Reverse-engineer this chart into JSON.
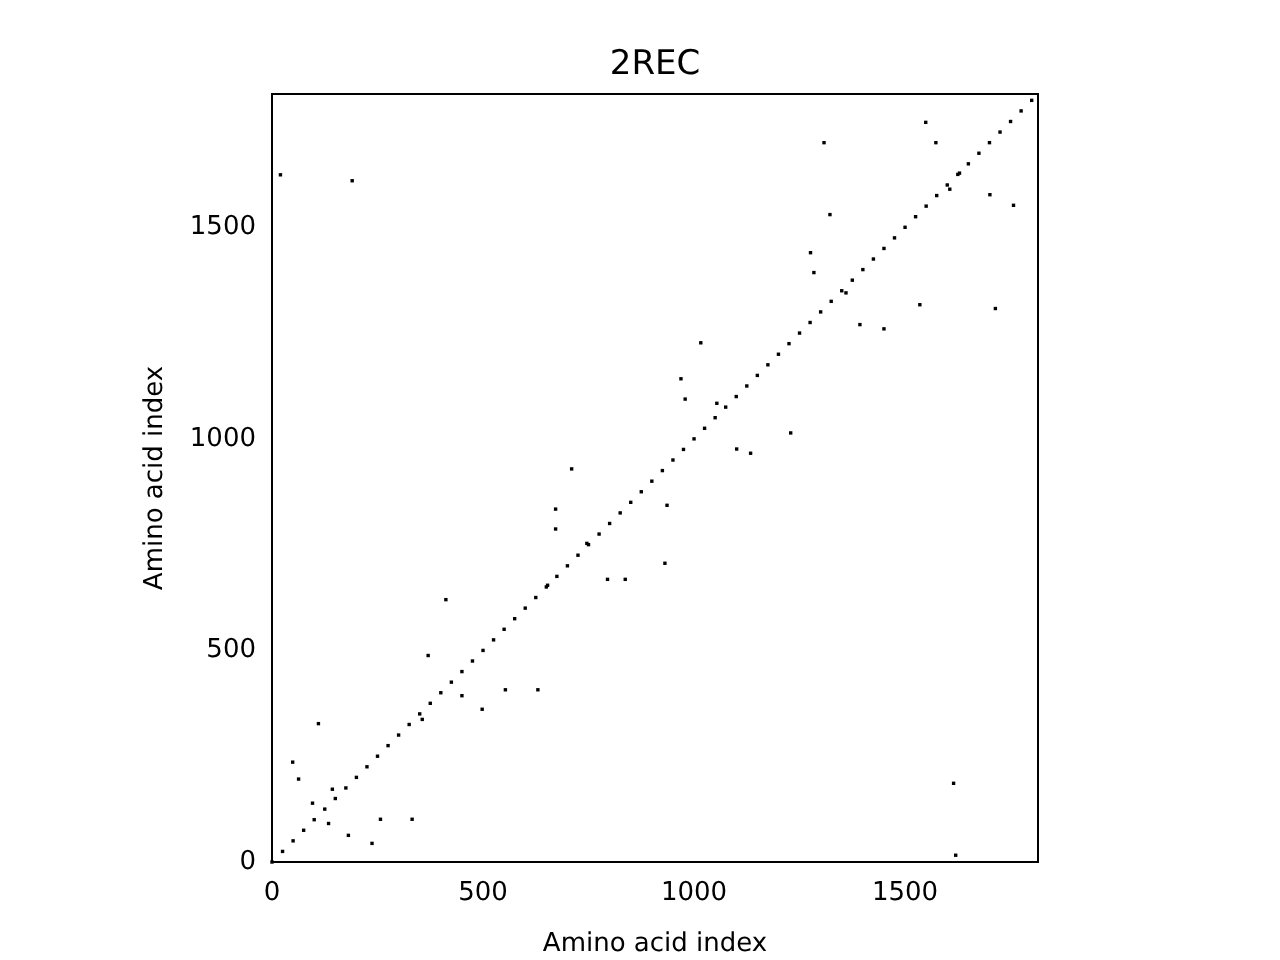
{
  "chart_data": {
    "type": "scatter",
    "title": "2REC",
    "xlabel": "Amino acid index",
    "ylabel": "Amino acid index",
    "xlim": [
      0,
      1815
    ],
    "ylim": [
      0,
      1815
    ],
    "xticks": [
      0,
      500,
      1000,
      1500
    ],
    "yticks": [
      0,
      500,
      1000,
      1500
    ],
    "grid": false,
    "legend": false,
    "marker": "square",
    "series": [
      {
        "color": "#000000",
        "x": [
          0,
          25,
          50,
          75,
          100,
          125,
          150,
          175,
          200,
          225,
          250,
          275,
          300,
          325,
          350,
          375,
          400,
          425,
          450,
          475,
          500,
          525,
          550,
          575,
          600,
          625,
          650,
          675,
          700,
          725,
          750,
          775,
          800,
          825,
          850,
          875,
          900,
          925,
          950,
          975,
          1000,
          1025,
          1050,
          1075,
          1100,
          1125,
          1150,
          1175,
          1200,
          1225,
          1250,
          1275,
          1300,
          1325,
          1350,
          1375,
          1400,
          1425,
          1450,
          1475,
          1500,
          1525,
          1550,
          1575,
          1600,
          1625,
          1650,
          1675,
          1700,
          1725,
          1750,
          1775,
          1800,
          20,
          190,
          49,
          63,
          96,
          143,
          181,
          237,
          332,
          257,
          134,
          110,
          370,
          412,
          356,
          498,
          450,
          630,
          553,
          672,
          672,
          653,
          795,
          837,
          746,
          710,
          1016,
          969,
          979,
          1101,
          1229,
          1276,
          1284,
          1322,
          1308,
          1393,
          1450,
          1535,
          1714,
          1549,
          1573,
          1701,
          1757,
          1360,
          1629,
          1606,
          1054,
          1134,
          936,
          931,
          1615,
          1620
        ],
        "values": [
          0,
          25,
          50,
          75,
          100,
          125,
          150,
          175,
          200,
          225,
          250,
          275,
          300,
          325,
          350,
          375,
          400,
          425,
          450,
          475,
          500,
          525,
          550,
          575,
          600,
          625,
          650,
          675,
          700,
          725,
          750,
          775,
          800,
          825,
          850,
          875,
          900,
          925,
          950,
          975,
          1000,
          1025,
          1050,
          1075,
          1100,
          1125,
          1150,
          1175,
          1200,
          1225,
          1250,
          1275,
          1300,
          1325,
          1350,
          1375,
          1400,
          1425,
          1450,
          1475,
          1500,
          1525,
          1550,
          1575,
          1600,
          1625,
          1650,
          1675,
          1700,
          1725,
          1750,
          1775,
          1800,
          1624,
          1610,
          236,
          196,
          139,
          172,
          63,
          44,
          101,
          101,
          91,
          327,
          488,
          620,
          337,
          361,
          393,
          407,
          407,
          834,
          787,
          654,
          668,
          668,
          753,
          929,
          1227,
          1142,
          1094,
          976,
          1014,
          1440,
          1393,
          1530,
          1700,
          1270,
          1260,
          1317,
          1308,
          1748,
          1700,
          1577,
          1552,
          1345,
          1628,
          1590,
          1084,
          966,
          843,
          706,
          186,
          16
        ]
      }
    ]
  }
}
